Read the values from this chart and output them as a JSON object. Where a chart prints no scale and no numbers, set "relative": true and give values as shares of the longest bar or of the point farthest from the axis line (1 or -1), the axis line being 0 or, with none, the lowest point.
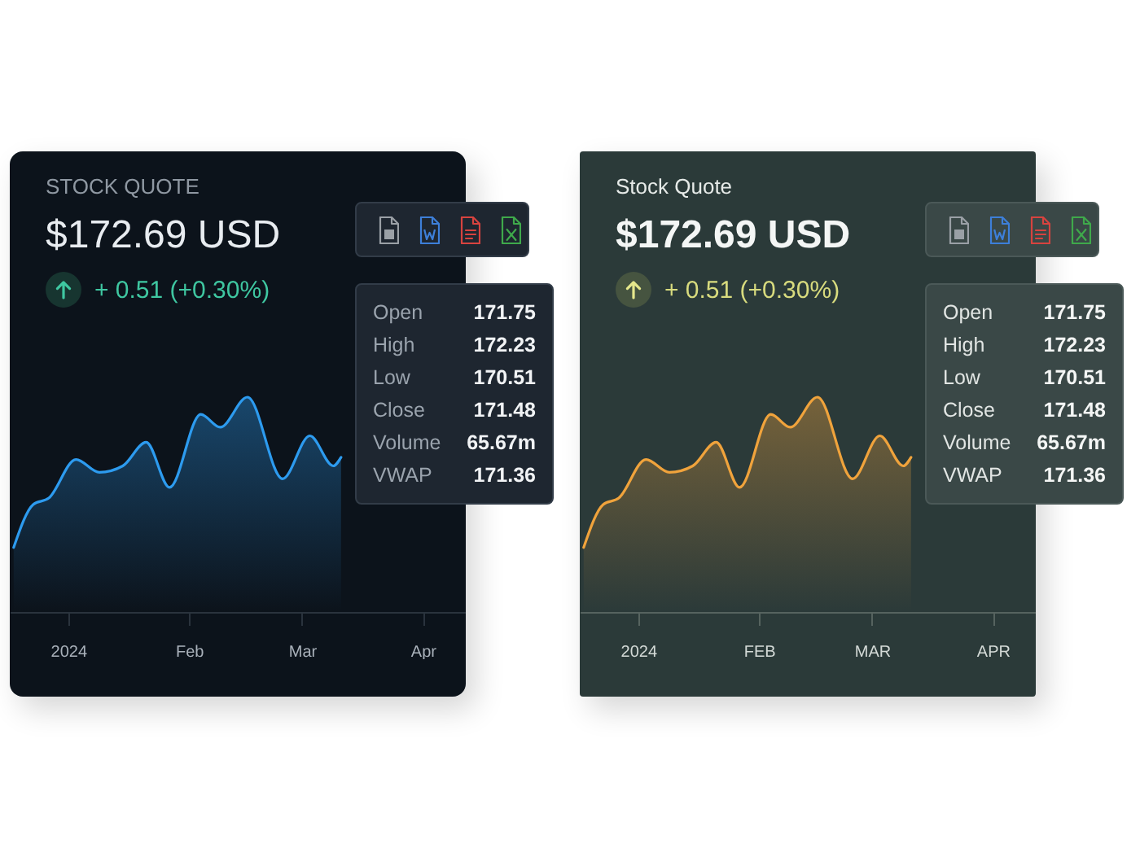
{
  "chart_data": [
    {
      "type": "area",
      "relative": true,
      "title": "STOCK QUOTE",
      "subtitle": "$172.69 USD",
      "annotations": [
        "+ 0.51 (+0.30%)",
        "Open",
        "171.75",
        "High",
        "172.23",
        "Low",
        "170.51",
        "Close",
        "171.48",
        "Volume",
        "65.67m",
        "VWAP",
        "171.36"
      ],
      "x": [
        "2023-12-18",
        "2023-12-23",
        "2023-12-27",
        "2024-01-03",
        "2024-01-09",
        "2024-01-15",
        "2024-01-21",
        "2024-01-27",
        "2024-02-04",
        "2024-02-09",
        "2024-02-16",
        "2024-02-25",
        "2024-03-03",
        "2024-03-09",
        "2024-03-11"
      ],
      "series": [
        {
          "color": "#2d9bef",
          "values": [
            0.3,
            0.5,
            0.53,
            0.71,
            0.65,
            0.68,
            0.79,
            0.58,
            0.92,
            0.86,
            1.0,
            0.62,
            0.82,
            0.68,
            0.72
          ]
        }
      ],
      "xlim": [
        "2023-12-17",
        "2024-04-12"
      ],
      "xticks": [
        {
          "value": "2024-01-01",
          "label": "2024"
        },
        {
          "value": "2024-02-01",
          "label": "Feb"
        },
        {
          "value": "2024-03-01",
          "label": "Mar"
        },
        {
          "value": "2024-04-01",
          "label": "Apr"
        }
      ]
    },
    {
      "type": "area",
      "relative": true,
      "title": "Stock Quote",
      "subtitle": "$172.69 USD",
      "annotations": [
        "+ 0.51 (+0.30%)",
        "Open",
        "171.75",
        "High",
        "172.23",
        "Low",
        "170.51",
        "Close",
        "171.48",
        "Volume",
        "65.67m",
        "VWAP",
        "171.36"
      ],
      "x": [
        "2023-12-18",
        "2023-12-23",
        "2023-12-27",
        "2024-01-03",
        "2024-01-09",
        "2024-01-15",
        "2024-01-21",
        "2024-01-27",
        "2024-02-04",
        "2024-02-09",
        "2024-02-16",
        "2024-02-25",
        "2024-03-03",
        "2024-03-09",
        "2024-03-11"
      ],
      "series": [
        {
          "color": "#f0a33c",
          "values": [
            0.3,
            0.5,
            0.53,
            0.71,
            0.65,
            0.68,
            0.79,
            0.58,
            0.92,
            0.86,
            1.0,
            0.62,
            0.82,
            0.68,
            0.72
          ]
        }
      ],
      "xlim": [
        "2023-12-17",
        "2024-04-12"
      ],
      "xticks": [
        {
          "value": "2024-01-01",
          "label": "2024"
        },
        {
          "value": "2024-02-01",
          "label": "FEB"
        },
        {
          "value": "2024-03-01",
          "label": "MAR"
        },
        {
          "value": "2024-04-01",
          "label": "APR"
        }
      ]
    }
  ]
}
